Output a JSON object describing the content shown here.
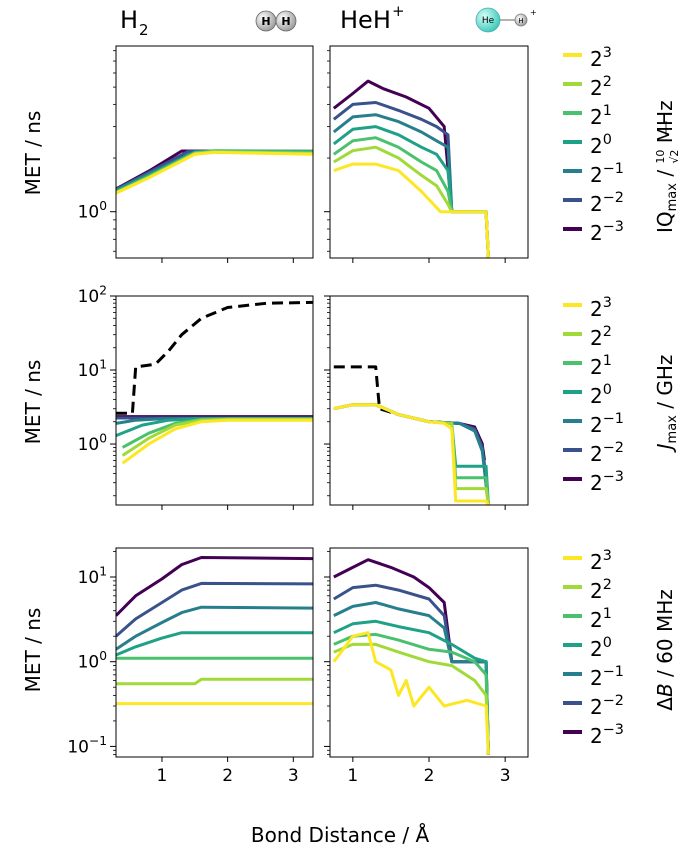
{
  "figure": {
    "xlabel": "Bond Distance / Å",
    "ylabel": "MET / ns",
    "column_titles": [
      {
        "base": "H",
        "sub": "2",
        "sup": ""
      },
      {
        "base": "HeH",
        "sub": "",
        "sup": "+"
      }
    ],
    "molecule_icons": {
      "h2": {
        "atoms": [
          "H",
          "H"
        ]
      },
      "heh": {
        "atoms": [
          "He",
          "H"
        ],
        "charge": "+"
      }
    },
    "legend_labels": [
      "2^3",
      "2^2",
      "2^1",
      "2^0",
      "2^-1",
      "2^-2",
      "2^-3"
    ],
    "colors": [
      "#fde725",
      "#a0da39",
      "#4ac16d",
      "#1fa187",
      "#277f8e",
      "#3a528b",
      "#440154"
    ],
    "row_legend_titles": [
      "IQmax / 10/√2 MHz",
      "Jmax / GHz",
      "ΔB / 60 MHz"
    ]
  },
  "chart_data": [
    {
      "type": "line",
      "row": 0,
      "col": 0,
      "molecule": "H2",
      "yscale": "log",
      "xlim": [
        0.3,
        3.3
      ],
      "ylim": [
        0.55,
        8.5
      ],
      "xticks": [
        1,
        2,
        3
      ],
      "xtick_labels": [
        "1",
        "2",
        "3"
      ],
      "yticks": [
        1
      ],
      "ytick_labels": [
        "10^0"
      ],
      "series": [
        {
          "name": "2^3",
          "x": [
            0.3,
            0.8,
            1.5,
            1.8,
            3.3
          ],
          "y": [
            1.27,
            1.55,
            2.1,
            2.15,
            2.1
          ]
        },
        {
          "name": "2^2",
          "x": [
            0.3,
            0.8,
            1.5,
            1.8,
            3.3
          ],
          "y": [
            1.28,
            1.56,
            2.12,
            2.17,
            2.12
          ]
        },
        {
          "name": "2^1",
          "x": [
            0.3,
            0.8,
            1.5,
            1.8,
            3.3
          ],
          "y": [
            1.29,
            1.58,
            2.14,
            2.19,
            2.16
          ]
        },
        {
          "name": "2^0",
          "x": [
            0.3,
            0.8,
            1.5,
            1.8,
            3.3
          ],
          "y": [
            1.3,
            1.6,
            2.15,
            2.2,
            2.18
          ]
        },
        {
          "name": "2^-1",
          "x": [
            0.3,
            0.8,
            1.5,
            3.3
          ],
          "y": [
            1.32,
            1.63,
            2.17,
            2.18
          ]
        },
        {
          "name": "2^-2",
          "x": [
            0.3,
            0.8,
            1.4,
            3.3
          ],
          "y": [
            1.33,
            1.66,
            2.18,
            2.18
          ]
        },
        {
          "name": "2^-3",
          "x": [
            0.3,
            0.8,
            1.3,
            3.3
          ],
          "y": [
            1.34,
            1.69,
            2.19,
            2.18
          ]
        }
      ]
    },
    {
      "type": "line",
      "row": 0,
      "col": 1,
      "molecule": "HeH+",
      "yscale": "log",
      "xlim": [
        0.7,
        3.3
      ],
      "ylim": [
        0.55,
        8.5
      ],
      "xticks": [
        1,
        2,
        3
      ],
      "xtick_labels": [
        "1",
        "2",
        "3"
      ],
      "yticks": [
        1
      ],
      "ytick_labels": [],
      "series": [
        {
          "name": "2^3",
          "x": [
            0.75,
            1.0,
            1.3,
            1.6,
            1.9,
            2.15,
            2.25,
            2.3,
            2.75,
            2.78
          ],
          "y": [
            1.7,
            1.85,
            1.85,
            1.7,
            1.3,
            1.0,
            1.0,
            1.0,
            1.0,
            0.55
          ]
        },
        {
          "name": "2^2",
          "x": [
            0.75,
            1.0,
            1.3,
            1.6,
            1.9,
            2.1,
            2.25,
            2.3,
            2.75,
            2.78
          ],
          "y": [
            1.9,
            2.2,
            2.3,
            2.0,
            1.6,
            1.4,
            1.1,
            1.0,
            1.0,
            0.55
          ]
        },
        {
          "name": "2^1",
          "x": [
            0.75,
            1.0,
            1.3,
            1.6,
            1.9,
            2.1,
            2.25,
            2.3,
            2.75,
            2.78
          ],
          "y": [
            2.1,
            2.5,
            2.6,
            2.3,
            1.9,
            1.7,
            1.3,
            1.0,
            1.0,
            0.55
          ]
        },
        {
          "name": "2^0",
          "x": [
            0.75,
            1.0,
            1.3,
            1.6,
            1.9,
            2.1,
            2.25,
            2.3,
            2.75,
            2.78
          ],
          "y": [
            2.4,
            2.9,
            3.0,
            2.7,
            2.3,
            2.1,
            1.7,
            1.0,
            1.0,
            0.55
          ]
        },
        {
          "name": "2^-1",
          "x": [
            0.75,
            1.0,
            1.3,
            1.6,
            1.9,
            2.1,
            2.25,
            2.3,
            2.75,
            2.78
          ],
          "y": [
            2.8,
            3.4,
            3.5,
            3.2,
            2.8,
            2.5,
            2.3,
            1.0,
            1.0,
            0.55
          ]
        },
        {
          "name": "2^-2",
          "x": [
            0.75,
            1.0,
            1.3,
            1.6,
            1.9,
            2.1,
            2.25,
            2.3,
            2.75,
            2.78
          ],
          "y": [
            3.3,
            4.0,
            4.1,
            3.7,
            3.3,
            3.0,
            2.7,
            1.0,
            1.0,
            0.55
          ]
        },
        {
          "name": "2^-3",
          "x": [
            0.75,
            1.0,
            1.2,
            1.4,
            1.7,
            2.0,
            2.2,
            2.3,
            2.75,
            2.78
          ],
          "y": [
            3.8,
            4.6,
            5.4,
            4.9,
            4.4,
            3.8,
            3.0,
            1.0,
            1.0,
            0.55
          ]
        }
      ]
    },
    {
      "type": "line",
      "row": 1,
      "col": 0,
      "molecule": "H2",
      "yscale": "log",
      "xlim": [
        0.3,
        3.3
      ],
      "ylim": [
        0.15,
        100
      ],
      "xticks": [
        1,
        2,
        3
      ],
      "xtick_labels": [
        "1",
        "2",
        "3"
      ],
      "yticks": [
        1,
        10,
        100
      ],
      "ytick_labels": [
        "10^0",
        "10^1",
        "10^2"
      ],
      "series": [
        {
          "name": "2^3",
          "x": [
            0.4,
            0.8,
            1.2,
            1.6,
            2.0,
            3.3
          ],
          "y": [
            0.55,
            1.0,
            1.6,
            2.0,
            2.1,
            2.1
          ]
        },
        {
          "name": "2^2",
          "x": [
            0.4,
            0.8,
            1.2,
            1.6,
            2.0,
            3.3
          ],
          "y": [
            0.7,
            1.2,
            1.8,
            2.1,
            2.15,
            2.15
          ]
        },
        {
          "name": "2^1",
          "x": [
            0.4,
            0.8,
            1.2,
            1.6,
            2.0,
            3.3
          ],
          "y": [
            0.9,
            1.4,
            1.9,
            2.15,
            2.2,
            2.2
          ]
        },
        {
          "name": "2^0",
          "x": [
            0.3,
            0.7,
            1.1,
            1.5,
            2.0,
            3.3
          ],
          "y": [
            1.3,
            1.8,
            2.1,
            2.2,
            2.2,
            2.2
          ]
        },
        {
          "name": "2^-1",
          "x": [
            0.3,
            0.6,
            1.0,
            1.4,
            3.3
          ],
          "y": [
            1.9,
            2.1,
            2.2,
            2.2,
            2.2
          ]
        },
        {
          "name": "2^-2",
          "x": [
            0.3,
            3.3
          ],
          "y": [
            2.25,
            2.25
          ]
        },
        {
          "name": "2^-3",
          "x": [
            0.3,
            3.3
          ],
          "y": [
            2.35,
            2.35
          ]
        },
        {
          "name": "reference",
          "dashed": true,
          "x": [
            0.3,
            0.55,
            0.6,
            0.9,
            1.1,
            1.3,
            1.6,
            2.0,
            2.6,
            3.3
          ],
          "y": [
            2.6,
            2.6,
            11,
            12,
            18,
            30,
            50,
            70,
            80,
            82
          ]
        }
      ]
    },
    {
      "type": "line",
      "row": 1,
      "col": 1,
      "molecule": "HeH+",
      "yscale": "log",
      "xlim": [
        0.7,
        3.3
      ],
      "ylim": [
        0.15,
        100
      ],
      "xticks": [
        1,
        2,
        3
      ],
      "xtick_labels": [
        "1",
        "2",
        "3"
      ],
      "yticks": [
        1,
        10,
        100
      ],
      "ytick_labels": [],
      "series": [
        {
          "name": "2^3",
          "x": [
            0.75,
            1.0,
            1.3,
            1.6,
            2.0,
            2.2,
            2.3,
            2.35,
            2.75,
            2.78
          ],
          "y": [
            3.0,
            3.4,
            3.4,
            2.5,
            2.0,
            1.9,
            1.6,
            0.17,
            0.17,
            0.15
          ]
        },
        {
          "name": "2^2",
          "x": [
            0.75,
            1.0,
            1.3,
            1.6,
            2.0,
            2.3,
            2.35,
            2.75,
            2.78
          ],
          "y": [
            3.0,
            3.4,
            3.4,
            2.5,
            2.0,
            1.9,
            0.25,
            0.25,
            0.15
          ]
        },
        {
          "name": "2^1",
          "x": [
            0.75,
            1.0,
            1.3,
            1.6,
            2.0,
            2.3,
            2.35,
            2.75,
            2.78
          ],
          "y": [
            3.0,
            3.4,
            3.4,
            2.5,
            2.0,
            1.9,
            0.35,
            0.35,
            0.15
          ]
        },
        {
          "name": "2^0",
          "x": [
            0.75,
            1.0,
            1.3,
            1.6,
            2.0,
            2.3,
            2.35,
            2.75,
            2.78
          ],
          "y": [
            3.0,
            3.4,
            3.4,
            2.5,
            2.0,
            1.9,
            0.5,
            0.5,
            0.15
          ]
        },
        {
          "name": "2^-1",
          "x": [
            0.75,
            1.0,
            1.3,
            1.6,
            2.0,
            2.4,
            2.6,
            2.7,
            2.78
          ],
          "y": [
            3.0,
            3.4,
            3.4,
            2.5,
            2.0,
            1.9,
            1.5,
            0.8,
            0.15
          ]
        },
        {
          "name": "2^-2",
          "x": [
            0.75,
            1.0,
            1.3,
            1.6,
            2.0,
            2.4,
            2.6,
            2.7,
            2.78
          ],
          "y": [
            3.0,
            3.4,
            3.4,
            2.5,
            2.0,
            1.9,
            1.6,
            0.9,
            0.15
          ]
        },
        {
          "name": "2^-3",
          "x": [
            0.75,
            1.0,
            1.3,
            1.6,
            2.0,
            2.4,
            2.6,
            2.7,
            2.78
          ],
          "y": [
            3.0,
            3.4,
            3.4,
            2.5,
            2.0,
            1.9,
            1.7,
            1.0,
            0.15
          ]
        },
        {
          "name": "reference",
          "dashed": true,
          "x": [
            0.75,
            1.0,
            1.3,
            1.35,
            1.6,
            2.0,
            2.4,
            2.6,
            2.7,
            2.75,
            2.78
          ],
          "y": [
            11,
            11,
            11,
            3.0,
            2.5,
            2.0,
            1.9,
            1.6,
            1.0,
            0.4,
            0.15
          ]
        }
      ]
    },
    {
      "type": "line",
      "row": 2,
      "col": 0,
      "molecule": "H2",
      "yscale": "log",
      "xlim": [
        0.3,
        3.3
      ],
      "ylim": [
        0.075,
        22
      ],
      "xticks": [
        1,
        2,
        3
      ],
      "xtick_labels": [
        "1",
        "2",
        "3"
      ],
      "yticks": [
        0.1,
        1,
        10
      ],
      "ytick_labels": [
        "10^-1",
        "10^0",
        "10^1"
      ],
      "series": [
        {
          "name": "2^3",
          "x": [
            0.3,
            3.3
          ],
          "y": [
            0.32,
            0.32
          ]
        },
        {
          "name": "2^2",
          "x": [
            0.3,
            1.5,
            1.6,
            3.3
          ],
          "y": [
            0.55,
            0.55,
            0.62,
            0.62
          ]
        },
        {
          "name": "2^1",
          "x": [
            0.3,
            3.3
          ],
          "y": [
            1.1,
            1.1
          ]
        },
        {
          "name": "2^0",
          "x": [
            0.3,
            0.6,
            1.0,
            1.3,
            3.3
          ],
          "y": [
            1.2,
            1.5,
            1.9,
            2.2,
            2.2
          ]
        },
        {
          "name": "2^-1",
          "x": [
            0.3,
            0.6,
            1.0,
            1.3,
            1.6,
            3.3
          ],
          "y": [
            1.4,
            2.0,
            2.9,
            3.8,
            4.4,
            4.3
          ]
        },
        {
          "name": "2^-2",
          "x": [
            0.3,
            0.6,
            1.0,
            1.3,
            1.6,
            3.3
          ],
          "y": [
            2.0,
            3.2,
            5.0,
            7.0,
            8.4,
            8.3
          ]
        },
        {
          "name": "2^-3",
          "x": [
            0.3,
            0.6,
            1.0,
            1.3,
            1.6,
            3.3
          ],
          "y": [
            3.5,
            6.0,
            9.5,
            14,
            17,
            16.5
          ]
        }
      ]
    },
    {
      "type": "line",
      "row": 2,
      "col": 1,
      "molecule": "HeH+",
      "yscale": "log",
      "xlim": [
        0.7,
        3.3
      ],
      "ylim": [
        0.075,
        22
      ],
      "xticks": [
        1,
        2,
        3
      ],
      "xtick_labels": [
        "1",
        "2",
        "3"
      ],
      "yticks": [
        0.1,
        1,
        10
      ],
      "ytick_labels": [],
      "series": [
        {
          "name": "2^3",
          "x": [
            0.75,
            0.9,
            1.0,
            1.2,
            1.3,
            1.5,
            1.6,
            1.7,
            1.8,
            2.0,
            2.2,
            2.5,
            2.75,
            2.78
          ],
          "y": [
            1.0,
            1.5,
            2.0,
            2.2,
            1.0,
            0.8,
            0.4,
            0.6,
            0.3,
            0.5,
            0.3,
            0.35,
            0.3,
            0.08
          ]
        },
        {
          "name": "2^2",
          "x": [
            0.75,
            1.0,
            1.3,
            1.6,
            2.0,
            2.3,
            2.6,
            2.75,
            2.78
          ],
          "y": [
            1.3,
            1.6,
            1.6,
            1.3,
            1.0,
            0.9,
            0.6,
            0.4,
            0.08
          ]
        },
        {
          "name": "2^1",
          "x": [
            0.75,
            1.0,
            1.3,
            1.6,
            2.0,
            2.3,
            2.6,
            2.75,
            2.78
          ],
          "y": [
            1.6,
            2.0,
            2.1,
            1.8,
            1.4,
            1.3,
            1.0,
            0.7,
            0.08
          ]
        },
        {
          "name": "2^0",
          "x": [
            0.75,
            1.0,
            1.3,
            1.6,
            2.0,
            2.3,
            2.6,
            2.75,
            2.78
          ],
          "y": [
            2.2,
            2.8,
            3.0,
            2.6,
            2.2,
            1.6,
            1.1,
            1.0,
            0.08
          ]
        },
        {
          "name": "2^-1",
          "x": [
            0.75,
            1.0,
            1.3,
            1.6,
            2.0,
            2.2,
            2.3,
            2.75,
            2.78
          ],
          "y": [
            3.5,
            4.5,
            5.0,
            4.2,
            3.5,
            2.5,
            1.0,
            1.0,
            0.08
          ]
        },
        {
          "name": "2^-2",
          "x": [
            0.75,
            1.0,
            1.3,
            1.6,
            2.0,
            2.2,
            2.3,
            2.75,
            2.78
          ],
          "y": [
            5.5,
            7.5,
            8.0,
            7.0,
            5.5,
            3.5,
            1.0,
            1.0,
            0.08
          ]
        },
        {
          "name": "2^-3",
          "x": [
            0.75,
            1.0,
            1.2,
            1.5,
            1.8,
            2.0,
            2.2,
            2.3,
            2.75,
            2.78
          ],
          "y": [
            10,
            13,
            16,
            13,
            10,
            7.5,
            5.0,
            1.0,
            1.0,
            0.08
          ]
        }
      ]
    }
  ]
}
